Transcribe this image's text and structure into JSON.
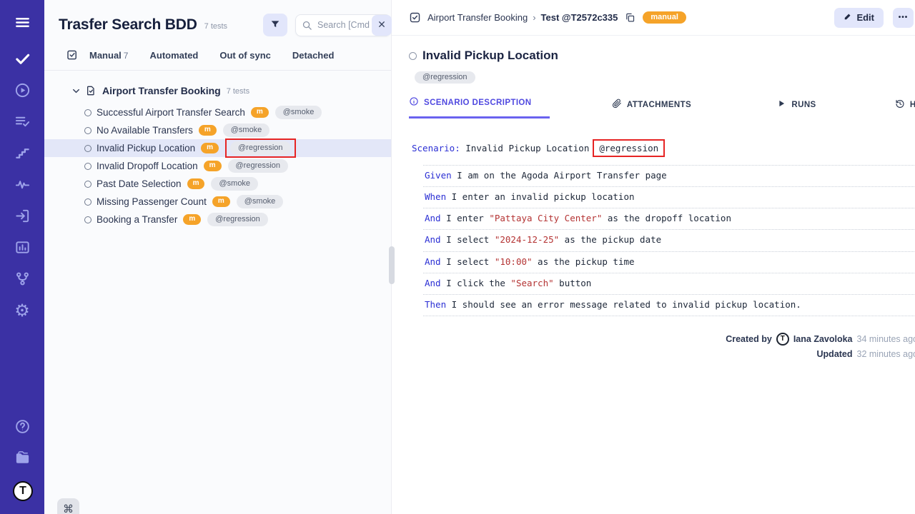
{
  "colors": {
    "rail": "#3b31a4",
    "accent": "#5049e0",
    "orange": "#f5a329",
    "annotation_red": "#e62424",
    "keyword_blue": "#2b2fd4",
    "string_red": "#b43333"
  },
  "sidebar": {
    "items": [
      {
        "name": "menu",
        "icon": "menu",
        "bright": true
      },
      {
        "name": "tests",
        "icon": "check",
        "bright": true
      },
      {
        "name": "runs",
        "icon": "play-circle",
        "bright": false
      },
      {
        "name": "test-plans",
        "icon": "list-check",
        "bright": false
      },
      {
        "name": "steps",
        "icon": "stairs",
        "bright": false
      },
      {
        "name": "analytics",
        "icon": "activity",
        "bright": false
      },
      {
        "name": "import",
        "icon": "import",
        "bright": false
      },
      {
        "name": "reports",
        "icon": "report",
        "bright": false
      },
      {
        "name": "branches",
        "icon": "branch",
        "bright": false
      },
      {
        "name": "settings",
        "icon": "gear",
        "bright": false
      }
    ],
    "footer": [
      {
        "name": "help",
        "icon": "help"
      },
      {
        "name": "docs",
        "icon": "docs"
      },
      {
        "name": "logo",
        "icon": "logo"
      }
    ],
    "logo_letter": "T"
  },
  "left_panel": {
    "title": "Trasfer Search BDD",
    "tests_count": "7 tests",
    "search_placeholder": "Search [Cmd +",
    "tabs": [
      {
        "label": "Manual",
        "count": "7"
      },
      {
        "label": "Automated",
        "count": ""
      },
      {
        "label": "Out of sync",
        "count": ""
      },
      {
        "label": "Detached",
        "count": ""
      }
    ],
    "folder": {
      "name": "Airport Transfer Booking",
      "count": "7 tests"
    },
    "tests": [
      {
        "name": "Successful Airport Transfer Search",
        "badge": "m",
        "tag": "@smoke",
        "selected": false,
        "annotated": false
      },
      {
        "name": "No Available Transfers",
        "badge": "m",
        "tag": "@smoke",
        "selected": false,
        "annotated": false
      },
      {
        "name": "Invalid Pickup Location",
        "badge": "m",
        "tag": "@regression",
        "selected": true,
        "annotated": true
      },
      {
        "name": "Invalid Dropoff Location",
        "badge": "m",
        "tag": "@regression",
        "selected": false,
        "annotated": false
      },
      {
        "name": "Past Date Selection",
        "badge": "m",
        "tag": "@smoke",
        "selected": false,
        "annotated": false
      },
      {
        "name": "Missing Passenger Count",
        "badge": "m",
        "tag": "@smoke",
        "selected": false,
        "annotated": false
      },
      {
        "name": "Booking a Transfer",
        "badge": "m",
        "tag": "@regression",
        "selected": false,
        "annotated": false
      }
    ],
    "shortcut_key": "⌘"
  },
  "detail": {
    "breadcrumb": {
      "folder": "Airport Transfer Booking",
      "separator": "›",
      "test_id": "Test @T2572c335",
      "badge": "manual"
    },
    "actions": {
      "edit": "Edit",
      "more": "•••",
      "close": "✕"
    },
    "title": "Invalid Pickup Location",
    "tag": "@regression",
    "tabs": [
      {
        "label": "SCENARIO DESCRIPTION",
        "icon": "info",
        "active": true
      },
      {
        "label": "ATTACHMENTS",
        "icon": "paperclip",
        "active": false
      },
      {
        "label": "RUNS",
        "icon": "play",
        "active": false
      },
      {
        "label": "HISTORY",
        "icon": "history",
        "active": false
      }
    ],
    "scenario": {
      "keyword": "Scenario:",
      "name": "Invalid Pickup Location",
      "tag": "@regression",
      "steps": [
        {
          "keyword": "Given",
          "parts": [
            {
              "type": "text",
              "value": " I am on the Agoda Airport Transfer page"
            }
          ]
        },
        {
          "keyword": "When",
          "parts": [
            {
              "type": "text",
              "value": " I enter an invalid pickup location"
            }
          ]
        },
        {
          "keyword": "And",
          "parts": [
            {
              "type": "text",
              "value": " I enter "
            },
            {
              "type": "str",
              "value": "\"Pattaya City Center\""
            },
            {
              "type": "text",
              "value": " as the dropoff location"
            }
          ]
        },
        {
          "keyword": "And",
          "parts": [
            {
              "type": "text",
              "value": " I select "
            },
            {
              "type": "str",
              "value": "\"2024-12-25\""
            },
            {
              "type": "text",
              "value": " as the pickup date"
            }
          ]
        },
        {
          "keyword": "And",
          "parts": [
            {
              "type": "text",
              "value": " I select "
            },
            {
              "type": "str",
              "value": "\"10:00\""
            },
            {
              "type": "text",
              "value": " as the pickup time"
            }
          ]
        },
        {
          "keyword": "And",
          "parts": [
            {
              "type": "text",
              "value": " I click the "
            },
            {
              "type": "str",
              "value": "\"Search\""
            },
            {
              "type": "text",
              "value": " button"
            }
          ]
        },
        {
          "keyword": "Then",
          "parts": [
            {
              "type": "text",
              "value": " I should see an error message related to invalid pickup location."
            }
          ]
        }
      ]
    },
    "meta": {
      "created_label": "Created by",
      "author": "Iana Zavoloka",
      "author_initial": "T",
      "created_ago": "34 minutes ago",
      "updated_label": "Updated",
      "updated_ago": "32 minutes ago"
    }
  }
}
